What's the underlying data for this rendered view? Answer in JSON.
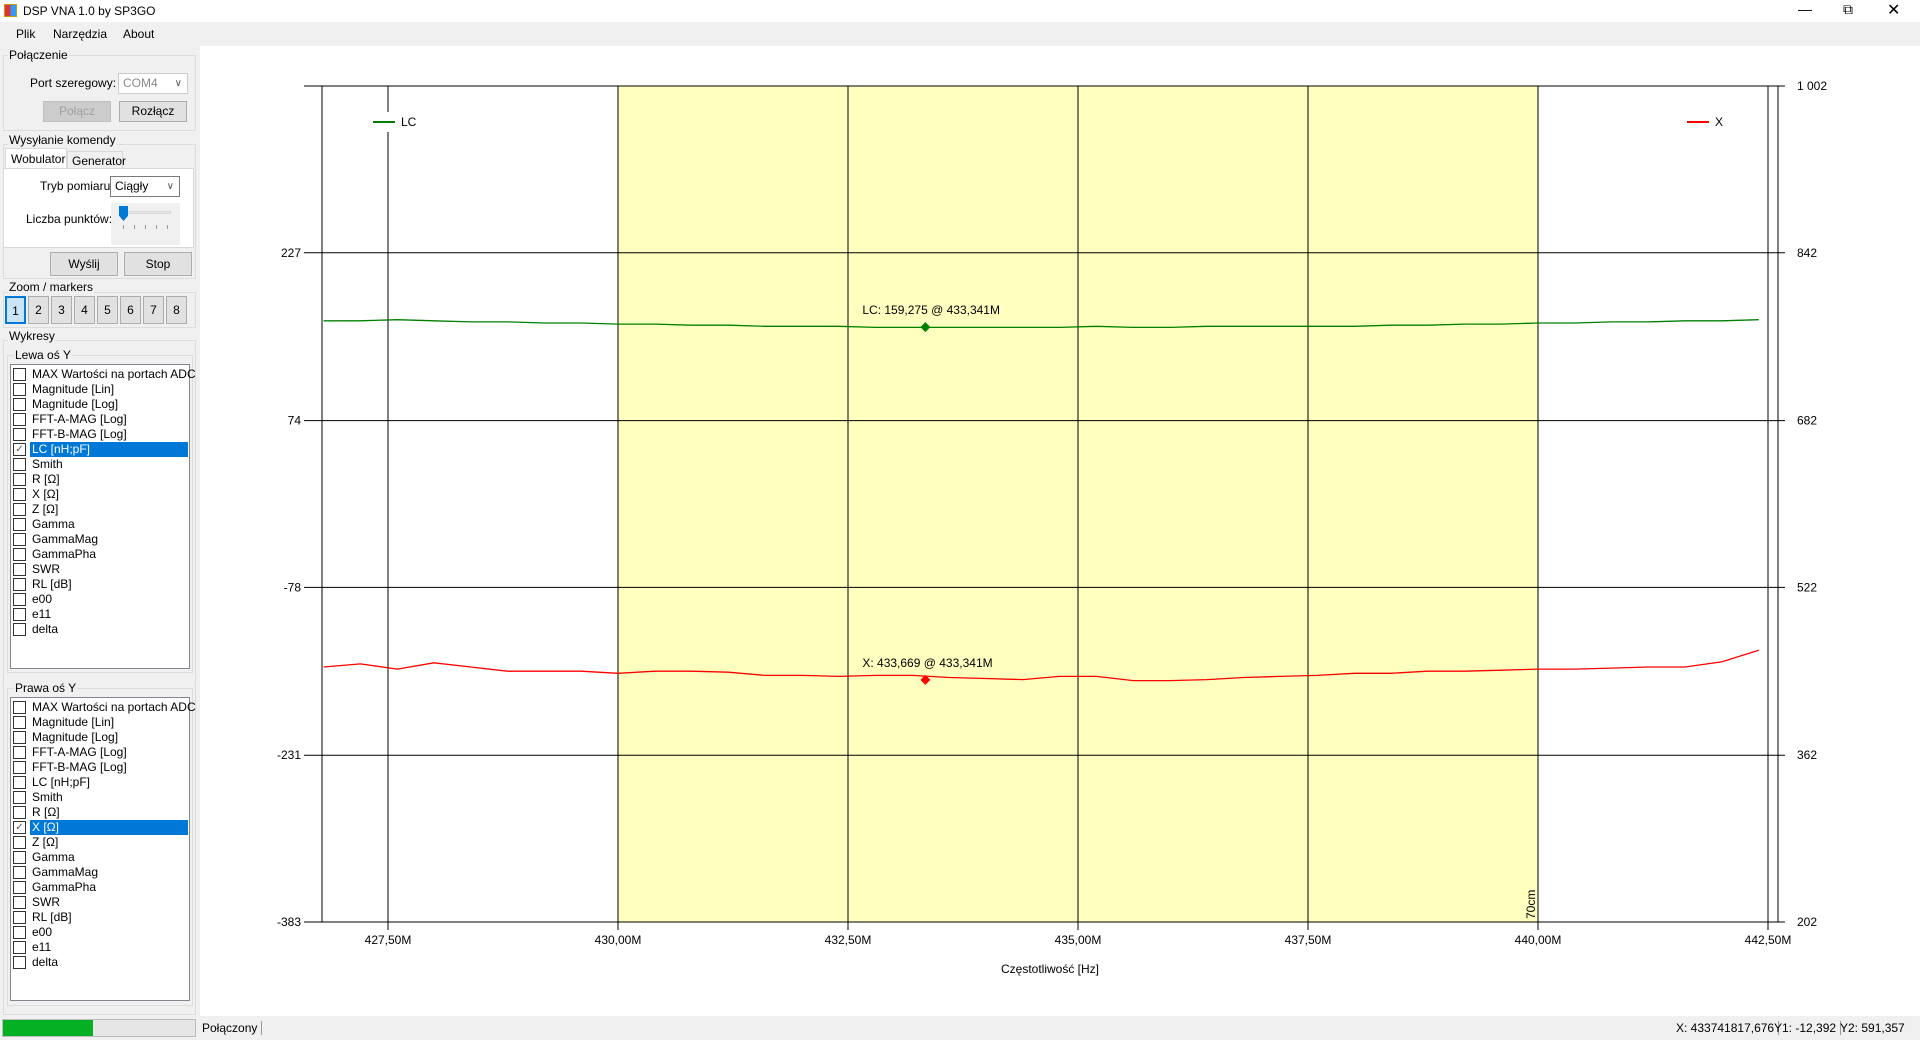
{
  "window": {
    "title": "DSP VNA 1.0 by SP3GO",
    "controls": [
      "minimize",
      "restore",
      "close"
    ]
  },
  "menu": [
    "Plik",
    "Narzędzia",
    "About"
  ],
  "connection": {
    "group": "Połączenie",
    "port_label": "Port szeregowy:",
    "port_value": "COM4",
    "connect": "Połącz",
    "disconnect": "Rozłącz"
  },
  "command": {
    "group": "Wysyłanie komendy",
    "tabs": [
      "Wobulator",
      "Generator"
    ],
    "mode_label": "Tryb pomiaru:",
    "mode_value": "Ciągły",
    "points_label": "Liczba punktów:",
    "points_slider_fraction": 0,
    "send": "Wyślij",
    "stop": "Stop"
  },
  "zoom": {
    "group": "Zoom / markers",
    "buttons": [
      "1",
      "2",
      "3",
      "4",
      "5",
      "6",
      "7",
      "8"
    ],
    "active": "1"
  },
  "charts": {
    "group": "Wykresy",
    "left": {
      "label": "Lewa oś Y",
      "items": [
        "MAX Wartości na portach ADC",
        "Magnitude [Lin]",
        "Magnitude [Log]",
        "FFT-A-MAG [Log]",
        "FFT-B-MAG [Log]",
        "LC [nH;pF]",
        "Smith",
        "R [Ω]",
        "X [Ω]",
        "Z [Ω]",
        "Gamma",
        "GammaMag",
        "GammaPha",
        "SWR",
        "RL [dB]",
        "e00",
        "e11",
        "delta"
      ],
      "checked": "LC [nH;pF]"
    },
    "right": {
      "label": "Prawa oś Y",
      "items": [
        "MAX Wartości na portach ADC",
        "Magnitude [Lin]",
        "Magnitude [Log]",
        "FFT-A-MAG [Log]",
        "FFT-B-MAG [Log]",
        "LC [nH;pF]",
        "Smith",
        "R [Ω]",
        "X [Ω]",
        "Z [Ω]",
        "Gamma",
        "GammaMag",
        "GammaPha",
        "SWR",
        "RL [dB]",
        "e00",
        "e11",
        "delta"
      ],
      "checked": "X [Ω]"
    }
  },
  "status": {
    "progress": 0.47,
    "state": "Połączony",
    "x": "X: 433741817,676",
    "y1": "Y1: -12,392",
    "y2": "Y2: 591,357",
    "progress_color": "#06b025"
  },
  "chart_data": {
    "type": "line",
    "xlabel": "Częstotliwość [Hz]",
    "xlim": [
      426.78,
      442.62
    ],
    "x_ticks": [
      427.5,
      430,
      432.5,
      435,
      437.5,
      440,
      442.5
    ],
    "x_tick_labels": [
      "427,50M",
      "430,00M",
      "432,50M",
      "435,00M",
      "437,50M",
      "440,00M",
      "442,50M"
    ],
    "y_left": {
      "lim": [
        -383,
        379
      ],
      "ticks": [
        -383,
        -231,
        -78,
        74,
        227
      ],
      "tick_labels": [
        "-383",
        "-231",
        "-78",
        "74",
        "227"
      ]
    },
    "y_right": {
      "lim": [
        202,
        1002
      ],
      "ticks": [
        202,
        362,
        522,
        682,
        842,
        1002
      ],
      "tick_labels": [
        "202",
        "362",
        "522",
        "682",
        "842",
        "1 002"
      ]
    },
    "grid": true,
    "band": {
      "from": 430,
      "to": 440,
      "label": "70cm",
      "color": "#ffffc0"
    },
    "x": [
      426.8,
      427.2,
      427.6,
      428.0,
      428.4,
      428.8,
      429.2,
      429.6,
      430.0,
      430.4,
      430.8,
      431.2,
      431.6,
      432.0,
      432.4,
      432.8,
      433.2,
      433.6,
      434.0,
      434.4,
      434.8,
      435.2,
      435.6,
      436.0,
      436.4,
      436.8,
      437.2,
      437.6,
      438.0,
      438.4,
      438.8,
      439.2,
      439.6,
      440.0,
      440.4,
      440.8,
      441.2,
      441.6,
      442.0,
      442.4
    ],
    "series": [
      {
        "name": "LC",
        "axis": "left",
        "color": "#008000",
        "legend": "top-left",
        "values": [
          165,
          165,
          166,
          165,
          164,
          164,
          163,
          163,
          162,
          162,
          161,
          161,
          160,
          160,
          160,
          159,
          159,
          159,
          159,
          159,
          159,
          160,
          159,
          159,
          160,
          160,
          160,
          160,
          160,
          161,
          161,
          162,
          162,
          163,
          163,
          164,
          164,
          165,
          165,
          166
        ],
        "marker": {
          "x": 433.341,
          "y": 159.275,
          "label": "LC: 159,275 @ 433,341M"
        }
      },
      {
        "name": "X",
        "axis": "right",
        "color": "#ff0000",
        "legend": "top-right",
        "values": [
          446,
          449,
          444,
          450,
          446,
          442,
          442,
          442,
          440,
          442,
          442,
          441,
          438,
          438,
          437,
          438,
          438,
          436,
          435,
          434,
          437,
          437,
          433,
          433,
          434,
          436,
          437,
          438,
          440,
          440,
          442,
          442,
          443,
          444,
          444,
          445,
          446,
          446,
          451,
          462
        ],
        "marker": {
          "x": 433.341,
          "y": 433.669,
          "label": "X: 433,669 @ 433,341M"
        }
      }
    ]
  }
}
